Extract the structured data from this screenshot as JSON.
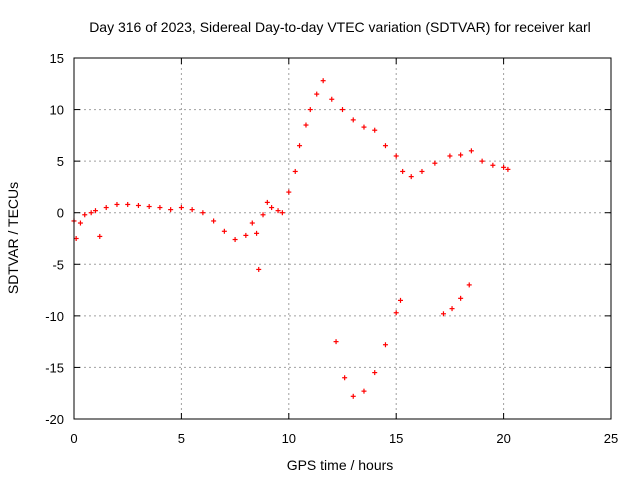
{
  "chart_data": {
    "type": "scatter",
    "title": "Day 316 of 2023, Sidereal Day-to-day VTEC variation (SDTVAR) for receiver karl",
    "xlabel": "GPS time / hours",
    "ylabel": "SDTVAR / TECUs",
    "xlim": [
      0,
      25
    ],
    "ylim": [
      -20,
      15
    ],
    "xticks": [
      0,
      5,
      10,
      15,
      20,
      25
    ],
    "yticks": [
      -20,
      -15,
      -10,
      -5,
      0,
      5,
      10,
      15
    ],
    "grid": true,
    "marker": "+",
    "color": "#ff0000",
    "series": [
      {
        "values": [
          [
            0.0,
            -0.8
          ],
          [
            0.1,
            -2.5
          ],
          [
            0.3,
            -1.0
          ],
          [
            0.5,
            -0.2
          ],
          [
            0.8,
            0.0
          ],
          [
            1.0,
            0.2
          ],
          [
            1.2,
            -2.3
          ],
          [
            1.5,
            0.5
          ],
          [
            2.0,
            0.8
          ],
          [
            2.5,
            0.8
          ],
          [
            3.0,
            0.7
          ],
          [
            3.5,
            0.6
          ],
          [
            4.0,
            0.5
          ],
          [
            4.5,
            0.3
          ],
          [
            5.0,
            0.5
          ],
          [
            5.5,
            0.3
          ],
          [
            6.0,
            0.0
          ],
          [
            6.5,
            -0.8
          ],
          [
            7.0,
            -1.8
          ],
          [
            7.5,
            -2.6
          ],
          [
            8.0,
            -2.2
          ],
          [
            8.3,
            -1.0
          ],
          [
            8.5,
            -2.0
          ],
          [
            8.6,
            -5.5
          ],
          [
            8.8,
            -0.2
          ],
          [
            9.0,
            1.0
          ],
          [
            9.2,
            0.5
          ],
          [
            9.5,
            0.2
          ],
          [
            9.7,
            0.0
          ],
          [
            10.0,
            2.0
          ],
          [
            10.3,
            4.0
          ],
          [
            10.5,
            6.5
          ],
          [
            10.8,
            8.5
          ],
          [
            11.0,
            10.0
          ],
          [
            11.3,
            11.5
          ],
          [
            11.6,
            12.8
          ],
          [
            12.0,
            11.0
          ],
          [
            12.5,
            10.0
          ],
          [
            13.0,
            9.0
          ],
          [
            13.5,
            8.3
          ],
          [
            14.0,
            8.0
          ],
          [
            14.5,
            6.5
          ],
          [
            15.0,
            5.5
          ],
          [
            15.3,
            4.0
          ],
          [
            15.7,
            3.5
          ],
          [
            16.2,
            4.0
          ],
          [
            16.8,
            4.8
          ],
          [
            17.5,
            5.5
          ],
          [
            18.0,
            5.6
          ],
          [
            18.5,
            6.0
          ],
          [
            19.0,
            5.0
          ],
          [
            19.5,
            4.6
          ],
          [
            20.0,
            4.4
          ],
          [
            20.2,
            4.2
          ],
          [
            12.2,
            -12.5
          ],
          [
            12.6,
            -16.0
          ],
          [
            13.0,
            -17.8
          ],
          [
            13.5,
            -17.3
          ],
          [
            14.0,
            -15.5
          ],
          [
            14.5,
            -12.8
          ],
          [
            15.0,
            -9.7
          ],
          [
            15.2,
            -8.5
          ],
          [
            17.2,
            -9.8
          ],
          [
            17.6,
            -9.3
          ],
          [
            18.0,
            -8.3
          ],
          [
            18.4,
            -7.0
          ]
        ],
        "points": []
      }
    ]
  }
}
